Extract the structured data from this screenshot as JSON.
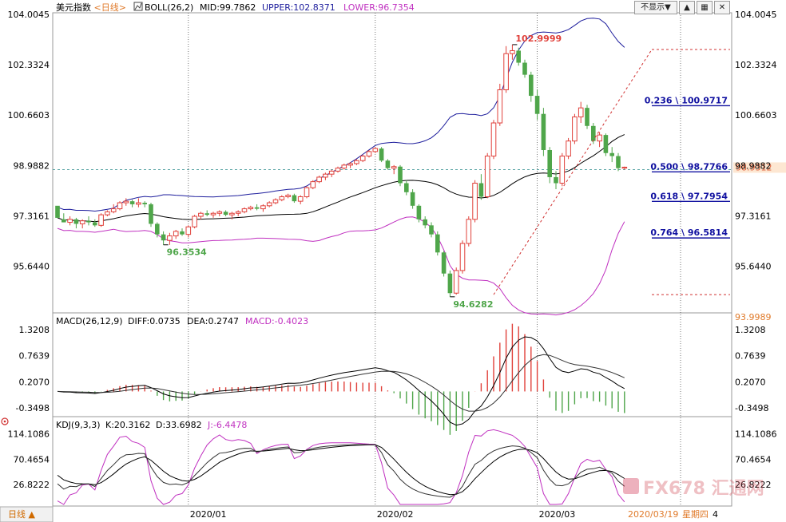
{
  "header": {
    "instrument": "美元指数",
    "period_label": "<日线>",
    "main_indicator": "BOLL(26,2)",
    "mid_label": "MID:99.7862",
    "upper_label": "UPPER:102.8371",
    "lower_label": "LOWER:96.7354",
    "hide_button": "不显示▼"
  },
  "colors": {
    "up": "#e0403a",
    "down": "#4fa64a",
    "mid_line": "#000000",
    "upper_band": "#1c1c9c",
    "lower_band": "#c030c0",
    "macd_diff": "#000000",
    "macd_dea": "#000000",
    "macd_label": "#c030c0",
    "j_line": "#c030c0",
    "fib_line": "#d03030",
    "fib_text": "#1010a0",
    "price_tag_bg": "#fde7d2",
    "price_tag_text": "#e0603a"
  },
  "price_axis": {
    "ticks": [
      104.0045,
      102.3324,
      100.6603,
      98.9882,
      97.3161,
      95.644
    ],
    "tick_labels": [
      "104.0045",
      "102.3324",
      "100.6603",
      "98.9882",
      "97.3161",
      "95.6440"
    ],
    "current_price_label": "98.9312",
    "current_price": 98.9312,
    "dashed_level": 98.85
  },
  "annotations": {
    "high_label": "102.9999",
    "high_value": 102.9999,
    "low1_label": "96.3534",
    "low1_value": 96.3534,
    "low2_label": "94.6282",
    "low2_value": 94.6282
  },
  "fibonacci": {
    "levels": [
      {
        "label": "0.236 \\ 100.9717",
        "value": 100.9717
      },
      {
        "label": "0.500 \\ 98.7766",
        "value": 98.7766
      },
      {
        "label": "0.618 \\ 97.7954",
        "value": 97.7954
      },
      {
        "label": "0.764 \\ 96.5814",
        "value": 96.5814
      }
    ],
    "top_level": 102.8371,
    "bottom_level": 94.7
  },
  "macd": {
    "title": "MACD(26,12,9)",
    "diff_label": "DIFF:0.0735",
    "dea_label": "DEA:0.2747",
    "macd_label": "MACD:-0.4023",
    "ticks": [
      1.3208,
      0.7639,
      0.207,
      -0.3498
    ],
    "tick_labels": [
      "1.3208",
      "0.7639",
      "0.2070",
      "-0.3498"
    ],
    "extra_label": "93.9989"
  },
  "kdj": {
    "title": "KDJ(9,3,3)",
    "k_label": "K:20.3162",
    "d_label": "D:33.6982",
    "j_label": "J:-6.4478",
    "ticks": [
      114.1086,
      70.4654,
      26.8222
    ],
    "tick_labels": [
      "114.1086",
      "70.4654",
      "26.8222"
    ]
  },
  "x_axis": {
    "labels": [
      {
        "text": "2020/01",
        "index": 21
      },
      {
        "text": "2020/02",
        "index": 51
      },
      {
        "text": "2020/03",
        "index": 77
      }
    ],
    "crosshair_label": "2020/03/19",
    "crosshair_day": "星期四",
    "crosshair_extra": "4",
    "crosshair_index": 100
  },
  "footer": {
    "period_tab": "日线 ▲"
  },
  "watermark": {
    "text": "FX678 汇通网"
  },
  "chart_data": {
    "type": "candlestick",
    "dates": [],
    "ohlc": [
      [
        97.65,
        97.6,
        97.3,
        97.25
      ],
      [
        97.2,
        97.4,
        97.1,
        97.1
      ],
      [
        97.1,
        97.3,
        97.0,
        97.2
      ],
      [
        97.2,
        97.25,
        96.9,
        97.05
      ],
      [
        97.05,
        97.2,
        96.9,
        97.15
      ],
      [
        97.15,
        97.3,
        97.0,
        97.1
      ],
      [
        97.1,
        97.2,
        96.95,
        97.0
      ],
      [
        97.0,
        97.4,
        96.95,
        97.35
      ],
      [
        97.35,
        97.5,
        97.3,
        97.45
      ],
      [
        97.45,
        97.7,
        97.4,
        97.55
      ],
      [
        97.55,
        97.8,
        97.5,
        97.75
      ],
      [
        97.75,
        97.9,
        97.65,
        97.8
      ],
      [
        97.8,
        97.85,
        97.6,
        97.7
      ],
      [
        97.7,
        97.9,
        97.6,
        97.75
      ],
      [
        97.75,
        97.8,
        97.6,
        97.7
      ],
      [
        97.7,
        97.75,
        96.95,
        97.05
      ],
      [
        97.05,
        97.1,
        96.6,
        96.7
      ],
      [
        96.7,
        96.8,
        96.35,
        96.5
      ],
      [
        96.5,
        96.75,
        96.35,
        96.65
      ],
      [
        96.65,
        96.85,
        96.55,
        96.8
      ],
      [
        96.8,
        96.9,
        96.65,
        96.7
      ],
      [
        96.7,
        97.0,
        96.6,
        96.95
      ],
      [
        96.95,
        97.35,
        96.9,
        97.3
      ],
      [
        97.3,
        97.45,
        97.2,
        97.4
      ],
      [
        97.4,
        97.5,
        97.3,
        97.35
      ],
      [
        97.35,
        97.45,
        97.25,
        97.4
      ],
      [
        97.4,
        97.5,
        97.3,
        97.45
      ],
      [
        97.45,
        97.5,
        97.3,
        97.35
      ],
      [
        97.35,
        97.45,
        97.2,
        97.4
      ],
      [
        97.4,
        97.5,
        97.3,
        97.45
      ],
      [
        97.45,
        97.6,
        97.4,
        97.55
      ],
      [
        97.55,
        97.65,
        97.5,
        97.6
      ],
      [
        97.6,
        97.7,
        97.5,
        97.55
      ],
      [
        97.55,
        97.7,
        97.45,
        97.65
      ],
      [
        97.65,
        97.8,
        97.6,
        97.75
      ],
      [
        97.75,
        97.9,
        97.7,
        97.85
      ],
      [
        97.85,
        98.0,
        97.8,
        97.95
      ],
      [
        97.95,
        98.05,
        97.9,
        98.0
      ],
      [
        98.0,
        98.05,
        97.75,
        97.8
      ],
      [
        97.8,
        98.0,
        97.7,
        97.95
      ],
      [
        97.95,
        98.3,
        97.9,
        98.25
      ],
      [
        98.25,
        98.5,
        98.2,
        98.45
      ],
      [
        98.45,
        98.65,
        98.4,
        98.6
      ],
      [
        98.6,
        98.75,
        98.5,
        98.7
      ],
      [
        98.7,
        98.85,
        98.6,
        98.8
      ],
      [
        98.8,
        98.95,
        98.75,
        98.9
      ],
      [
        98.9,
        99.05,
        98.85,
        99.0
      ],
      [
        99.0,
        99.1,
        98.9,
        99.05
      ],
      [
        99.05,
        99.2,
        99.0,
        99.15
      ],
      [
        99.15,
        99.35,
        99.1,
        99.3
      ],
      [
        99.3,
        99.5,
        99.25,
        99.45
      ],
      [
        99.45,
        99.6,
        99.4,
        99.55
      ],
      [
        99.55,
        99.6,
        99.1,
        99.15
      ],
      [
        99.15,
        99.2,
        98.85,
        98.9
      ],
      [
        98.9,
        99.0,
        98.7,
        98.95
      ],
      [
        98.95,
        99.0,
        98.3,
        98.4
      ],
      [
        98.4,
        98.5,
        98.0,
        98.1
      ],
      [
        98.1,
        98.2,
        97.55,
        97.65
      ],
      [
        97.65,
        97.7,
        97.1,
        97.2
      ],
      [
        97.2,
        97.3,
        96.9,
        97.0
      ],
      [
        97.0,
        97.1,
        96.6,
        96.7
      ],
      [
        96.7,
        96.8,
        96.0,
        96.1
      ],
      [
        96.1,
        96.15,
        95.3,
        95.4
      ],
      [
        95.4,
        95.5,
        94.6282,
        94.75
      ],
      [
        94.75,
        95.6,
        94.7,
        95.5
      ],
      [
        95.5,
        96.5,
        95.4,
        96.4
      ],
      [
        96.4,
        97.3,
        96.3,
        97.2
      ],
      [
        97.2,
        98.5,
        97.1,
        98.4
      ],
      [
        98.4,
        98.7,
        97.85,
        97.95
      ],
      [
        97.95,
        99.4,
        97.9,
        99.3
      ],
      [
        99.3,
        100.5,
        99.2,
        100.4
      ],
      [
        100.4,
        101.7,
        100.3,
        101.5
      ],
      [
        101.5,
        102.95,
        101.4,
        102.7
      ],
      [
        102.7,
        102.9999,
        102.5,
        102.8
      ],
      [
        102.8,
        102.9,
        102.3,
        102.4
      ],
      [
        102.4,
        102.5,
        101.9,
        102.0
      ],
      [
        102.0,
        102.1,
        101.1,
        101.3
      ],
      [
        101.3,
        101.5,
        100.5,
        100.7
      ],
      [
        100.7,
        100.9,
        99.3,
        99.5
      ],
      [
        99.5,
        99.6,
        98.4,
        98.6
      ],
      [
        98.6,
        98.8,
        98.2,
        98.4
      ],
      [
        98.4,
        99.4,
        98.3,
        99.3
      ],
      [
        99.3,
        99.9,
        99.2,
        99.8
      ],
      [
        99.8,
        100.7,
        99.7,
        100.6
      ],
      [
        100.6,
        101.1,
        100.4,
        100.9
      ],
      [
        100.9,
        101.0,
        100.2,
        100.3
      ],
      [
        100.3,
        100.4,
        99.7,
        99.8
      ],
      [
        99.8,
        100.1,
        99.6,
        100.0
      ],
      [
        100.0,
        100.05,
        99.3,
        99.4
      ],
      [
        99.4,
        99.6,
        99.1,
        99.3
      ],
      [
        99.3,
        99.4,
        98.8,
        98.9
      ],
      [
        98.9,
        98.95,
        98.85,
        98.9312
      ]
    ],
    "series": [
      {
        "name": "MID",
        "last": 99.7862
      },
      {
        "name": "UPPER",
        "last": 102.8371
      },
      {
        "name": "LOWER",
        "last": 96.7354
      }
    ],
    "ylim": [
      94.2,
      104.0045
    ]
  }
}
